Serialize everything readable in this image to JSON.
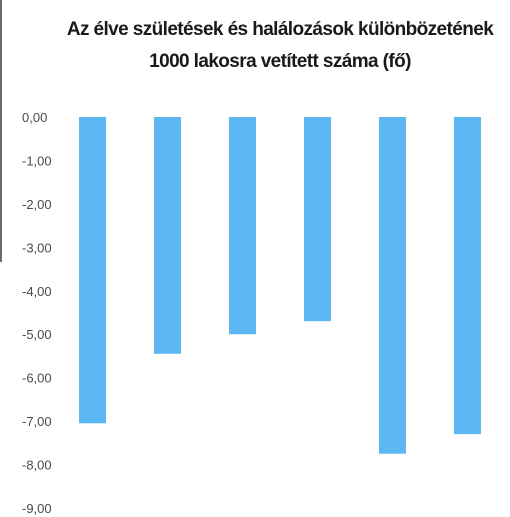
{
  "chart_data": {
    "type": "bar",
    "title": "Az élve születések és halálozások különbözetének 1000 lakosra vetített száma (fő)",
    "title_lines": [
      "Az élve születések és halálozások különbözetének",
      "1000 lakosra vetített száma (fő)"
    ],
    "xlabel": "",
    "ylabel": "",
    "ylim": [
      -9,
      0
    ],
    "y_ticks": [
      0,
      -1,
      -2,
      -3,
      -4,
      -5,
      -6,
      -7,
      -8,
      -9
    ],
    "y_tick_labels": [
      "0,00",
      "-1,00",
      "-2,00",
      "-3,00",
      "-4,00",
      "-5,00",
      "-6,00",
      "-7,00",
      "-8,00",
      "-9,00"
    ],
    "grid": false,
    "legend": "none",
    "bar_color": "#5bb8f2",
    "values": [
      -7.05,
      -5.45,
      -5.0,
      -4.7,
      -7.75,
      -7.3
    ]
  }
}
